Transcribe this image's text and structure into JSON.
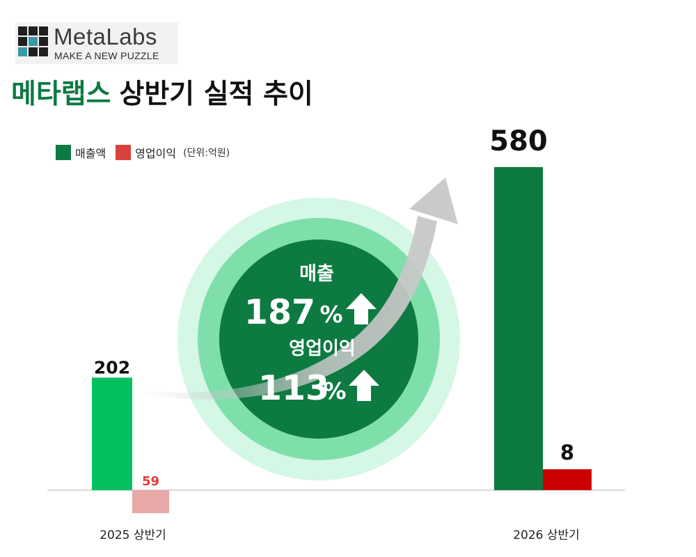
{
  "logo": {
    "name": "MetaLabs",
    "tagline": "MAKE A NEW PUZZLE"
  },
  "title": {
    "brand": "메타랩스",
    "rest": "상반기 실적 추이"
  },
  "legend": {
    "items": [
      {
        "label": "매출액",
        "color": "#0c7a41"
      },
      {
        "label": "영업이익",
        "color": "#d9413f"
      }
    ],
    "unit": "(단위:억원)"
  },
  "growth": {
    "revenue_label": "매출",
    "revenue_value": "187",
    "revenue_unit": "%",
    "profit_label": "영업이익",
    "profit_value": "113",
    "profit_unit": "%"
  },
  "chart_data": {
    "type": "bar",
    "categories": [
      "2025 상반기",
      "2026 상반기"
    ],
    "series": [
      {
        "name": "매출액",
        "values": [
          202,
          580
        ],
        "colors": [
          "#00c060",
          "#0c7a41"
        ]
      },
      {
        "name": "영업이익",
        "values": [
          -59,
          8
        ],
        "colors": [
          "#e8a8a8",
          "#cc0000"
        ]
      }
    ],
    "data_labels": [
      [
        "202",
        "580"
      ],
      [
        "59",
        "8"
      ]
    ],
    "ylim": [
      -59,
      580
    ],
    "grid": false,
    "legend_position": "top-left"
  },
  "colors": {
    "brand_green": "#0c7a41",
    "circle_outer": "#d5f7e6",
    "circle_mid": "#7fdfaa",
    "circle_inner": "#0c7a41",
    "arrow_gray": "#c8c8c8",
    "red_label": "#e83a3a"
  }
}
